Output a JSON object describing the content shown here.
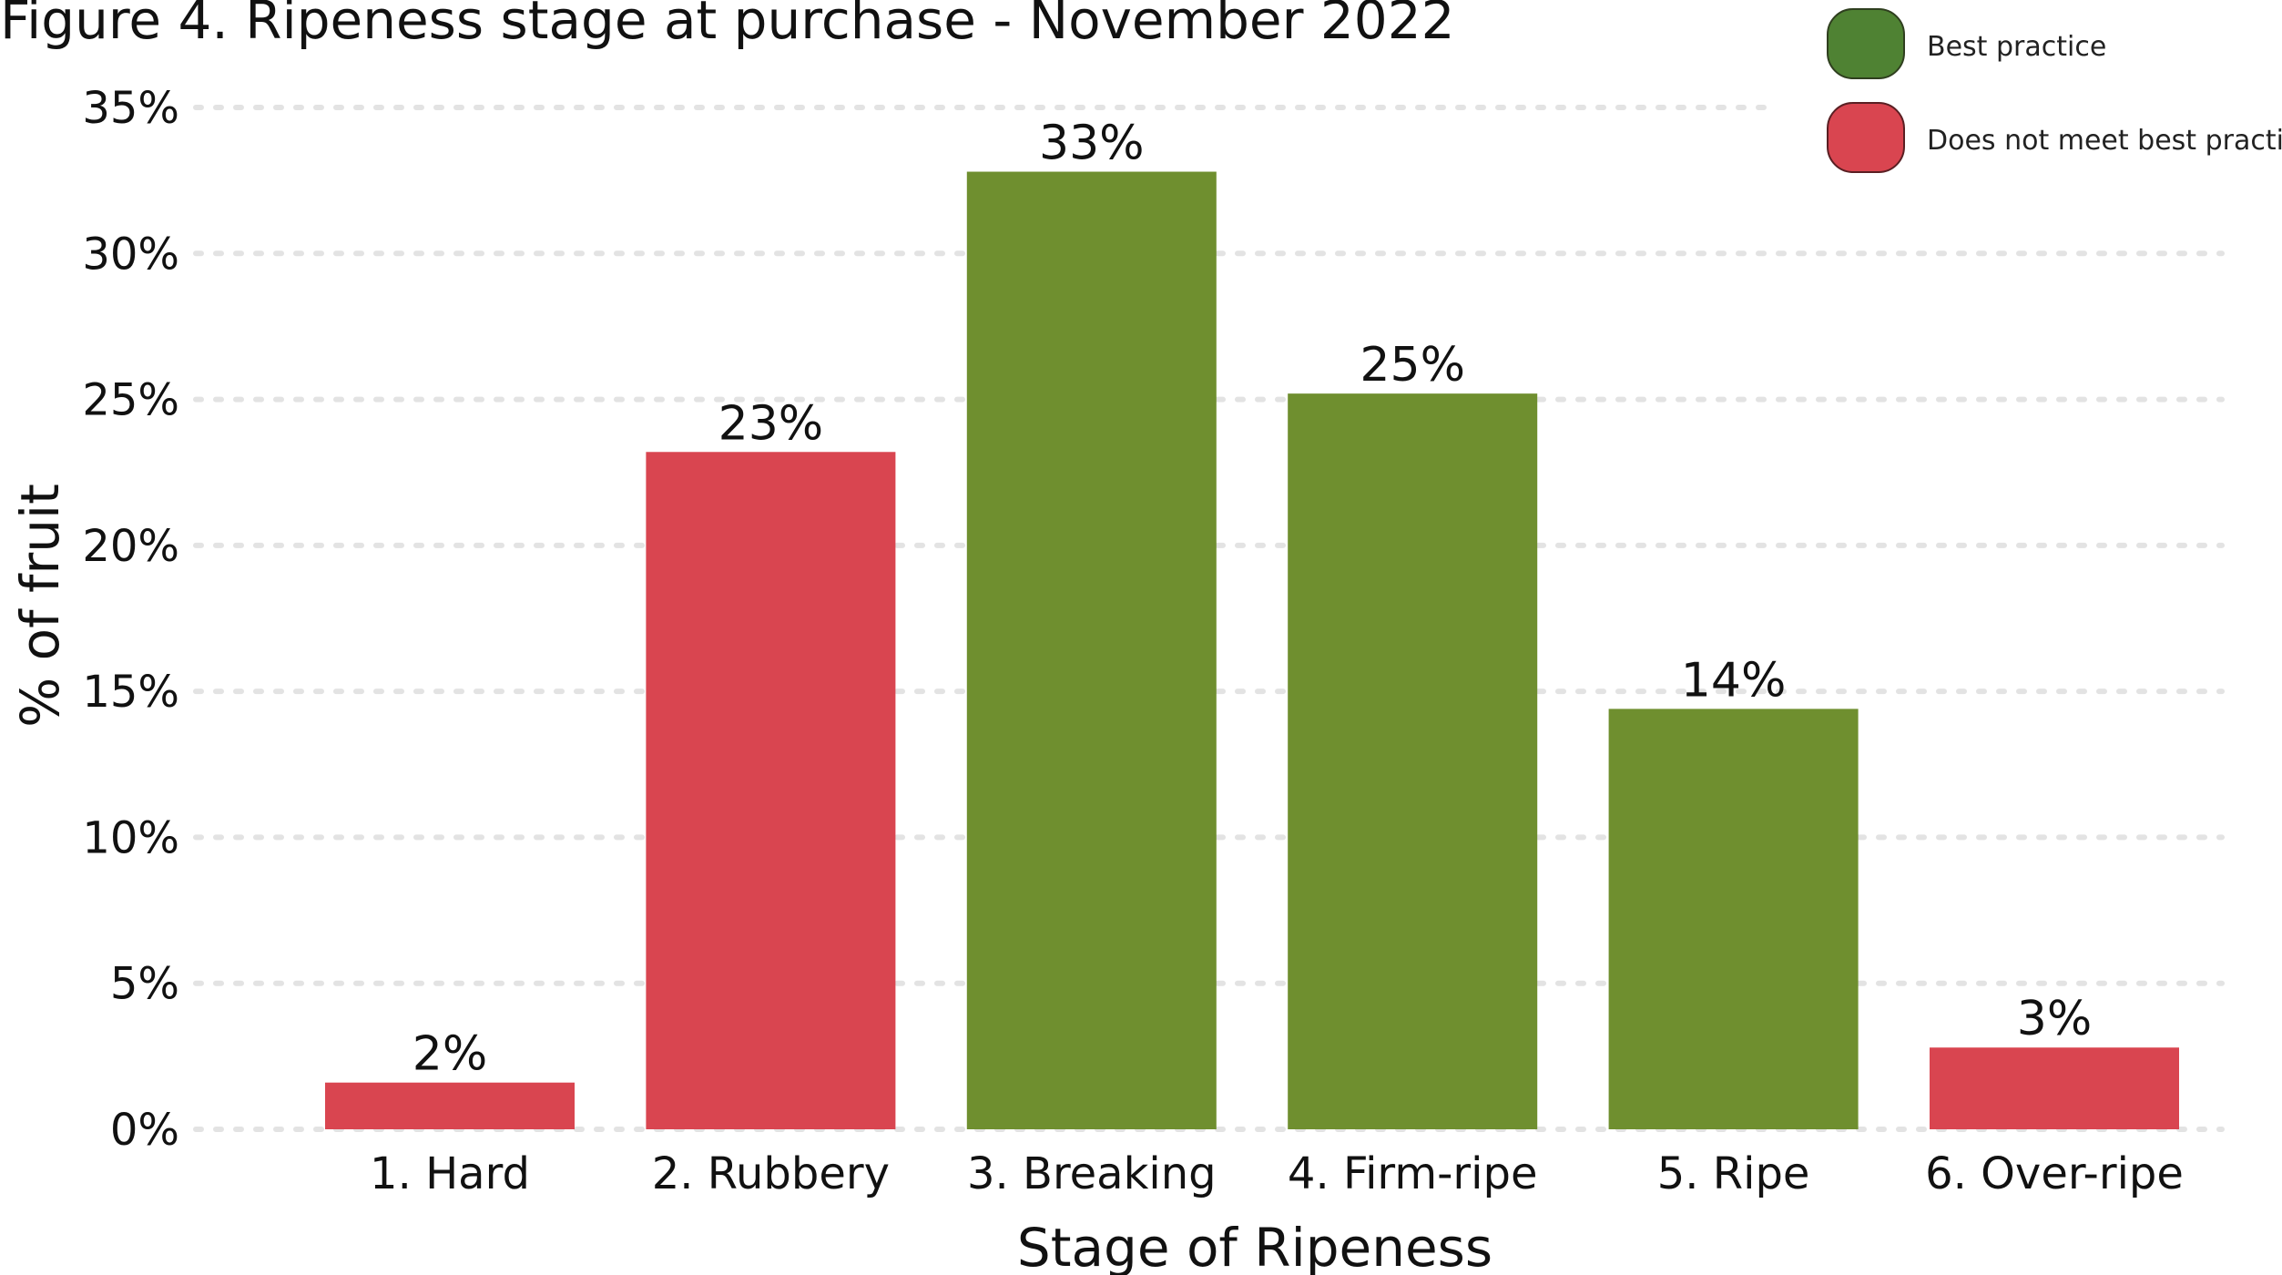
{
  "chart_data": {
    "type": "bar",
    "title": "Figure 4. Ripeness stage at purchase - November 2022",
    "xlabel": "Stage of Ripeness",
    "ylabel": "% of fruit",
    "ylim": [
      0,
      35
    ],
    "yticks": [
      "0%",
      "5%",
      "10%",
      "15%",
      "20%",
      "25%",
      "30%",
      "35%"
    ],
    "yticks_values": [
      0,
      5,
      10,
      15,
      20,
      25,
      30,
      35
    ],
    "grid": true,
    "legend_position": "top-right",
    "categories": [
      "1. Hard",
      "2. Rubbery",
      "3. Breaking",
      "4. Firm-ripe",
      "5. Ripe",
      "6. Over-ripe"
    ],
    "values": [
      1.6,
      23.2,
      32.8,
      25.2,
      14.4,
      2.8
    ],
    "data_labels": [
      "2%",
      "23%",
      "33%",
      "25%",
      "14%",
      "3%"
    ],
    "bar_groups": [
      "Does not meet best practice",
      "Does not meet best practice",
      "Best practice",
      "Best practice",
      "Best practice",
      "Does not meet best practice"
    ],
    "legend": [
      {
        "name": "Best practice",
        "color": "#4f8233"
      },
      {
        "name": "Does not meet best practice",
        "color": "#d94550"
      }
    ],
    "colors": {
      "best_practice_bar": "#6f8f2f",
      "not_best_practice_bar": "#d94550"
    }
  }
}
